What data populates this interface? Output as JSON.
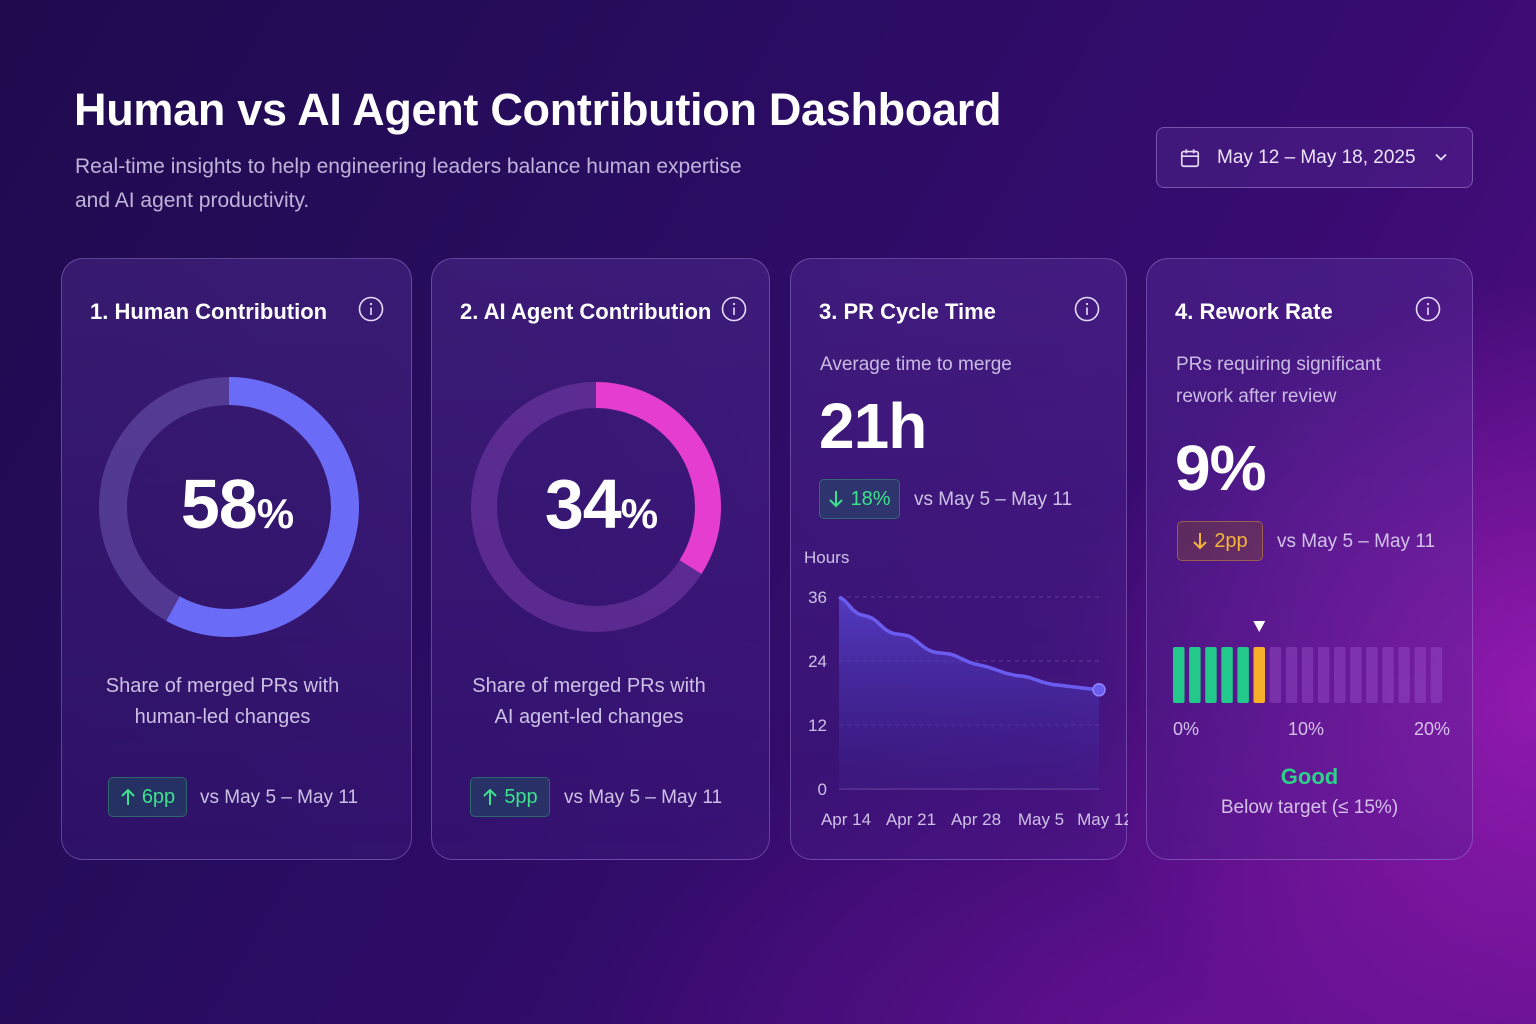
{
  "header": {
    "title": "Human vs AI Agent Contribution Dashboard",
    "subtitle_line1": "Real-time insights to help engineering leaders balance human expertise",
    "subtitle_line2": "and AI agent productivity."
  },
  "date_picker": {
    "value": "May 12 – May 18, 2025",
    "icon": "calendar-icon",
    "dropdown_icon": "chevron-down-icon"
  },
  "cards": {
    "human": {
      "title": "1.  Human Contribution",
      "value": "58",
      "unit": "%",
      "fraction": 0.58,
      "description_line1": "Share of merged PRs with",
      "description_line2": "human-led changes",
      "delta": "6pp",
      "delta_direction": "up",
      "comparison": "vs May 5 – May 11",
      "ring_color": "#6a6cf7"
    },
    "ai": {
      "title": "2.  AI Agent Contribution",
      "value": "34",
      "unit": "%",
      "fraction": 0.34,
      "description_line1": "Share of merged PRs with",
      "description_line2": "AI agent-led changes",
      "delta": "5pp",
      "delta_direction": "up",
      "comparison": "vs May 5 – May 11",
      "ring_color": "#e43dcf"
    },
    "cycle": {
      "title": "3.  PR Cycle Time",
      "subtitle": "Average time to merge",
      "value": "21h",
      "delta": "18%",
      "delta_direction": "down",
      "comparison": "vs May 5 – May 11"
    },
    "rework": {
      "title": "4.  Rework Rate",
      "subtitle_line1": "PRs requiring significant",
      "subtitle_line2": "rework after review",
      "value": "9%",
      "delta": "2pp",
      "delta_direction": "down",
      "comparison": "vs May 5 – May 11",
      "scale_labels": [
        "0%",
        "10%",
        "20%"
      ],
      "status": "Good",
      "status_note": "Below target (≤ 15%)",
      "segments_total": 17,
      "segments_filled": 6,
      "marker_segment": 6
    }
  },
  "chart_data": {
    "type": "area",
    "title": "",
    "xlabel": "",
    "ylabel": "Hours",
    "ylim": [
      0,
      36
    ],
    "yticks": [
      0,
      12,
      24,
      36
    ],
    "xtick_labels": [
      "Apr 14",
      "Apr 21",
      "Apr 28",
      "May 5",
      "May 12"
    ],
    "x": [
      0,
      0.5,
      1,
      1.5,
      2,
      2.5,
      3,
      3.5,
      4,
      4.5,
      5,
      5.5,
      6,
      6.5,
      7,
      7.5,
      8,
      8.5,
      9,
      9.5,
      10,
      10.5,
      11,
      11.5,
      12,
      12.5,
      13,
      13.5,
      14,
      14.5,
      15,
      15.5,
      16,
      16.5,
      17,
      17.5,
      18,
      18.5,
      19,
      19.5,
      20,
      20.5,
      21,
      21.5,
      22,
      22.5,
      23,
      23.5,
      24,
      24.5,
      25,
      25.5,
      26,
      26.5,
      27,
      27.5,
      28
    ],
    "x_meaning": "days from Apr 14",
    "series": [
      {
        "values": [
          36,
          35.5,
          34.6,
          33.6,
          32.9,
          32.6,
          32.4,
          32.1,
          31.5,
          30.7,
          29.9,
          29.4,
          29.1,
          29.0,
          28.9,
          28.7,
          28.2,
          27.5,
          26.8,
          26.2,
          25.8,
          25.6,
          25.5,
          25.4,
          25.3,
          25.0,
          24.6,
          24.2,
          23.8,
          23.5,
          23.3,
          23.1,
          22.9,
          22.6,
          22.3,
          22.0,
          21.7,
          21.5,
          21.3,
          21.2,
          21.1,
          20.9,
          20.6,
          20.3,
          20.0,
          19.8,
          19.6,
          19.5,
          19.4,
          19.3,
          19.2,
          19.1,
          19.0,
          18.9,
          18.8,
          18.7,
          18.6
        ],
        "color": "#6b5cf0"
      }
    ],
    "grid": true
  }
}
